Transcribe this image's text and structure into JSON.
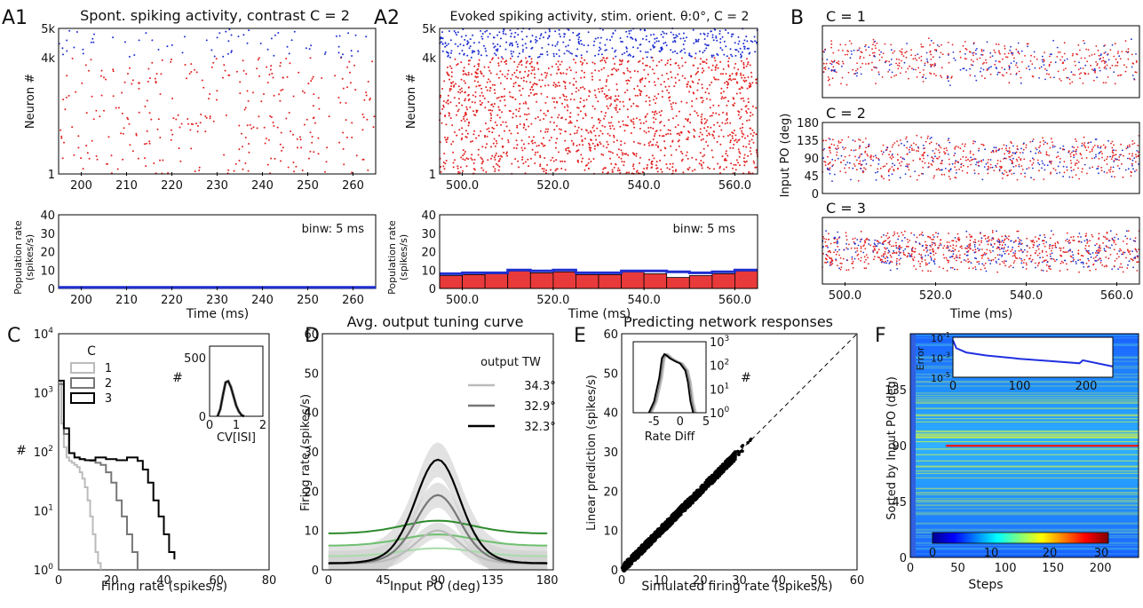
{
  "chart_data": [
    {
      "panel": "A1",
      "type": "scatter",
      "title": "Spont. spiking activity, contrast C = 2",
      "xlabel": "",
      "ylabel": "Neuron #",
      "xlim": [
        195,
        265
      ],
      "ylim": [
        1,
        5000
      ],
      "xticks": [
        "200",
        "210",
        "220",
        "230",
        "240",
        "250",
        "260"
      ],
      "yticks": [
        "5k",
        "4k",
        "1"
      ],
      "series": [
        {
          "color": "#e32020",
          "role": "excitatory"
        },
        {
          "color": "#1f2fd0",
          "role": "inhibitory"
        }
      ]
    },
    {
      "panel": "A1-rate",
      "type": "line",
      "xlabel": "Time (ms)",
      "ylabel": "Population rate (spikes/s)",
      "xlim": [
        195,
        265
      ],
      "ylim": [
        0,
        40
      ],
      "xticks": [
        "200",
        "210",
        "220",
        "230",
        "240",
        "250",
        "260"
      ],
      "yticks": [
        "0",
        "10",
        "20",
        "30",
        "40"
      ],
      "annotation": "binw: 5 ms",
      "x": [
        195,
        200,
        205,
        210,
        215,
        220,
        225,
        230,
        235,
        240,
        245,
        250,
        255,
        260,
        265
      ],
      "values": [
        0.6,
        0.6,
        0.6,
        0.6,
        0.6,
        0.6,
        0.6,
        0.6,
        0.6,
        0.6,
        0.6,
        0.6,
        0.6,
        0.6,
        0.6
      ]
    },
    {
      "panel": "A2",
      "type": "scatter",
      "title": "Evoked spiking activity, stim. orient. θ:0°, C = 2",
      "xlabel": "",
      "ylabel": "Neuron #",
      "xlim": [
        495,
        565
      ],
      "ylim": [
        1,
        5000
      ],
      "xticks": [
        "500.0",
        "520.0",
        "540.0",
        "560.0"
      ],
      "yticks": [
        "5k",
        "4k",
        "1"
      ],
      "series": [
        {
          "color": "#e32020",
          "role": "excitatory"
        },
        {
          "color": "#1f2fd0",
          "role": "inhibitory"
        }
      ]
    },
    {
      "panel": "A2-rate",
      "type": "bar",
      "xlabel": "Time (ms)",
      "ylabel": "Population rate (spikes/s)",
      "xlim": [
        495,
        565
      ],
      "ylim": [
        0,
        40
      ],
      "xticks": [
        "500.0",
        "520.0",
        "540.0",
        "560.0"
      ],
      "yticks": [
        "0",
        "10",
        "20",
        "30",
        "40"
      ],
      "annotation": "binw: 5 ms",
      "bin_starts": [
        495,
        500,
        505,
        510,
        515,
        520,
        525,
        530,
        535,
        540,
        545,
        550,
        555,
        560
      ],
      "exc_rate": [
        7,
        7.5,
        8,
        9.5,
        8.5,
        9,
        7.5,
        7.5,
        9,
        8,
        6,
        7,
        8,
        9.5
      ],
      "inh_rate": [
        8,
        8.5,
        8.5,
        10,
        9.5,
        10,
        8.5,
        8.5,
        9.5,
        9.5,
        9,
        8.5,
        9,
        10
      ]
    },
    {
      "panel": "B",
      "type": "scatter",
      "subplots": [
        "C = 1",
        "C = 2",
        "C = 3"
      ],
      "xlabel": "Time (ms)",
      "ylabel": "Input PO (deg)",
      "xlim": [
        495,
        565
      ],
      "ylim": [
        0,
        180
      ],
      "xticks": [
        "500.0",
        "520.0",
        "540.0",
        "560.0"
      ],
      "yticks": [
        "0",
        "45",
        "90",
        "135",
        "180"
      ]
    },
    {
      "panel": "C",
      "type": "line",
      "xlabel": "Firing rate (spikes/s)",
      "ylabel": "#",
      "xlim": [
        0,
        80
      ],
      "ylim": [
        1,
        10000
      ],
      "yscale": "log",
      "xticks": [
        "0",
        "20",
        "40",
        "60",
        "80"
      ],
      "legend_title": "C",
      "series": [
        {
          "name": "1",
          "color": "#bbbbbb",
          "x": [
            0,
            1,
            2,
            3,
            4,
            5,
            6,
            7,
            8,
            9,
            10,
            11,
            12,
            13,
            14,
            15,
            16
          ],
          "values": [
            1500,
            300,
            120,
            80,
            70,
            65,
            60,
            55,
            45,
            35,
            25,
            15,
            8,
            4,
            2,
            1.3,
            1
          ]
        },
        {
          "name": "2",
          "color": "#777777",
          "x": [
            0,
            2,
            4,
            6,
            8,
            10,
            12,
            14,
            16,
            18,
            20,
            22,
            24,
            26,
            28,
            30
          ],
          "values": [
            1400,
            200,
            95,
            80,
            75,
            72,
            70,
            65,
            60,
            45,
            30,
            15,
            8,
            4,
            2,
            1
          ]
        },
        {
          "name": "3",
          "color": "#000000",
          "x": [
            0,
            2,
            4,
            6,
            8,
            10,
            14,
            18,
            22,
            26,
            30,
            32,
            34,
            36,
            38,
            40,
            42,
            44
          ],
          "values": [
            1600,
            250,
            95,
            80,
            75,
            72,
            80,
            75,
            72,
            80,
            70,
            50,
            30,
            15,
            8,
            4,
            2,
            1.5
          ]
        }
      ],
      "inset": {
        "xlabel": "CV[ISI]",
        "ylabel": "#",
        "xlim": [
          0,
          2
        ],
        "ylim": [
          0,
          600
        ],
        "xticks": [
          "0",
          "1",
          "2"
        ],
        "yticks": [
          "0",
          "500"
        ],
        "x": [
          0.3,
          0.4,
          0.5,
          0.6,
          0.7,
          0.8,
          0.9,
          1.0,
          1.1,
          1.2,
          1.3
        ],
        "values": [
          0,
          60,
          180,
          290,
          300,
          250,
          170,
          90,
          40,
          10,
          0
        ]
      }
    },
    {
      "panel": "D",
      "type": "line",
      "title": "Avg. output tuning curve",
      "xlabel": "Input PO (deg)",
      "ylabel": "Firing rate (spikes/s)",
      "xlim": [
        -5,
        185
      ],
      "ylim": [
        0,
        60
      ],
      "xticks": [
        "0",
        "45",
        "90",
        "135",
        "180"
      ],
      "yticks": [
        "0",
        "10",
        "20",
        "30",
        "40",
        "50",
        "60"
      ],
      "legend_title": "output TW",
      "series": [
        {
          "name": "34.3°",
          "color": "#bbbbbb",
          "peak": 10,
          "base": 1.5
        },
        {
          "name": "32.9°",
          "color": "#777777",
          "peak": 19,
          "base": 1.5
        },
        {
          "name": "32.3°",
          "color": "#000000",
          "peak": 28,
          "base": 1.5
        }
      ],
      "input_curves": [
        {
          "color": "#2e8b2e",
          "peak": 12.5,
          "base": 8.5
        },
        {
          "color": "#6fbf6f",
          "peak": 9,
          "base": 5.5
        },
        {
          "color": "#a8dca8",
          "peak": 5.5,
          "base": 3
        }
      ]
    },
    {
      "panel": "E",
      "type": "scatter",
      "title": "Predicting network responses",
      "xlabel": "Simulated firing rate (spikes/s)",
      "ylabel": "Linear prediction (spikes/s)",
      "xlim": [
        0,
        60
      ],
      "ylim": [
        0,
        60
      ],
      "xticks": [
        "0",
        "10",
        "20",
        "30",
        "40",
        "50",
        "60"
      ],
      "yticks": [
        "0",
        "10",
        "20",
        "30",
        "40",
        "50",
        "60"
      ],
      "identity_line": true,
      "points_range": [
        0,
        33
      ],
      "inset": {
        "xlabel": "Rate Diff",
        "ylabel": "#",
        "yscale": "log",
        "xlim": [
          -9,
          5
        ],
        "ylim": [
          1,
          1000
        ],
        "xticks": [
          "-5",
          "0",
          "5"
        ],
        "yticks": [
          "10⁰",
          "10¹",
          "10²",
          "10³"
        ]
      }
    },
    {
      "panel": "F",
      "type": "heatmap",
      "xlabel": "Steps",
      "ylabel": "Sorted by Input PO (deg)",
      "xlim": [
        0,
        240
      ],
      "ylim": [
        0,
        180
      ],
      "xticks": [
        "0",
        "50",
        "100",
        "150",
        "200"
      ],
      "yticks": [
        "0",
        "45",
        "90",
        "135"
      ],
      "colorbar": {
        "min": 0,
        "max": 30,
        "ticks": [
          "0",
          "10",
          "20",
          "30"
        ]
      },
      "inset": {
        "ylabel": "Error",
        "yscale": "log",
        "xlim": [
          0,
          240
        ],
        "xticks": [
          "0",
          "100",
          "200"
        ],
        "yticks": [
          "10⁻¹",
          "10⁻³",
          "10⁻⁵"
        ],
        "x": [
          0,
          5,
          20,
          50,
          100,
          150,
          190,
          195,
          240
        ],
        "values": [
          0.05,
          0.008,
          0.003,
          0.0015,
          0.0007,
          0.0004,
          0.00025,
          0.0005,
          0.00012
        ]
      }
    }
  ],
  "panel_labels": [
    "A1",
    "A2",
    "B",
    "C",
    "D",
    "E",
    "F"
  ],
  "inset_C_xlabel": "CV[ISI]"
}
